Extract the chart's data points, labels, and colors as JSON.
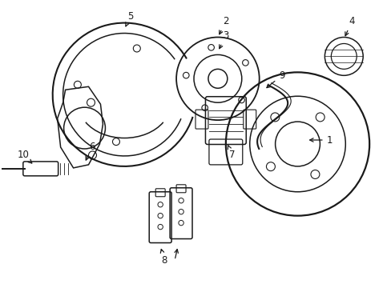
{
  "bg_color": "#ffffff",
  "line_color": "#1a1a1a",
  "line_width": 1.1,
  "fig_width": 4.89,
  "fig_height": 3.6,
  "dpi": 100
}
